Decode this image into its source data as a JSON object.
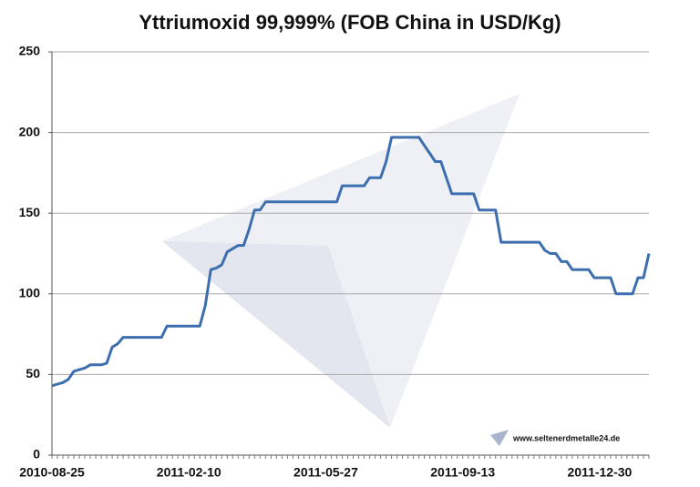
{
  "chart_data": {
    "type": "line",
    "title": "Yttriumoxid 99,999% (FOB China in USD/Kg)",
    "annotation": "www.seltenerdmetalle24.de",
    "categories": [
      "2010-08-25",
      null,
      null,
      null,
      null,
      null,
      null,
      null,
      null,
      null,
      null,
      null,
      null,
      null,
      null,
      null,
      null,
      null,
      null,
      null,
      null,
      null,
      null,
      null,
      null,
      "2011-02-10",
      null,
      null,
      null,
      null,
      null,
      null,
      null,
      null,
      null,
      null,
      null,
      null,
      null,
      null,
      null,
      null,
      null,
      null,
      null,
      null,
      null,
      null,
      null,
      null,
      "2011-05-27",
      null,
      null,
      null,
      null,
      null,
      null,
      null,
      null,
      null,
      null,
      null,
      null,
      null,
      null,
      null,
      null,
      null,
      null,
      null,
      null,
      null,
      null,
      null,
      null,
      "2011-09-13",
      null,
      null,
      null,
      null,
      null,
      null,
      null,
      null,
      null,
      null,
      null,
      null,
      null,
      null,
      null,
      null,
      null,
      null,
      null,
      null,
      null,
      null,
      null,
      null,
      "2011-12-30",
      null,
      null,
      null,
      null,
      null,
      null,
      null,
      null,
      null
    ],
    "values": [
      43,
      44,
      45,
      47,
      52,
      53,
      54,
      56,
      56,
      56,
      57,
      67,
      69,
      73,
      73,
      73,
      73,
      73,
      73,
      73,
      73,
      80,
      80,
      80,
      80,
      80,
      80,
      80,
      93,
      115,
      116,
      118,
      126,
      128,
      130,
      130,
      140,
      152,
      152,
      157,
      157,
      157,
      157,
      157,
      157,
      157,
      157,
      157,
      157,
      157,
      157,
      157,
      157,
      167,
      167,
      167,
      167,
      167,
      172,
      172,
      172,
      182,
      197,
      197,
      197,
      197,
      197,
      197,
      192,
      187,
      182,
      182,
      172,
      162,
      162,
      162,
      162,
      162,
      152,
      152,
      152,
      152,
      132,
      132,
      132,
      132,
      132,
      132,
      132,
      132,
      127,
      125,
      125,
      120,
      120,
      115,
      115,
      115,
      115,
      110,
      110,
      110,
      110,
      100,
      100,
      100,
      100,
      110,
      110,
      125
    ],
    "color": "#3d6eae",
    "ylim": [
      0,
      250
    ],
    "yticks": [
      0,
      50,
      100,
      150,
      200,
      250
    ],
    "grid": true
  }
}
